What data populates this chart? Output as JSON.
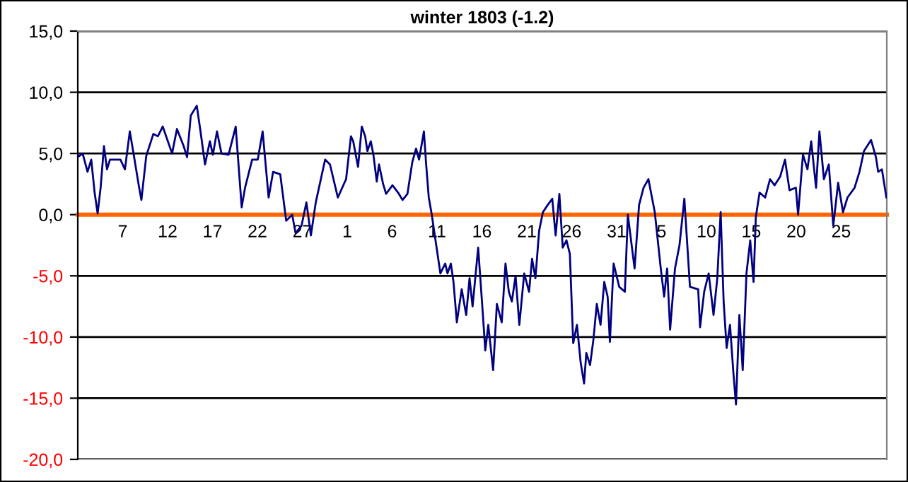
{
  "chart_data": {
    "type": "line",
    "title": "winter 1803 (-1.2)",
    "x": [
      "1802-12-02T00:00",
      "1802-12-02T13:00",
      "1802-12-03T02:00",
      "1802-12-03T12:00",
      "1802-12-03T21:00",
      "1802-12-04T05:00",
      "1802-12-04T13:00",
      "1802-12-04T22:00",
      "1802-12-05T06:00",
      "1802-12-05T14:00",
      "1802-12-06T18:00",
      "1802-12-07T06:00",
      "1802-12-07T19:00",
      "1802-12-08T05:00",
      "1802-12-08T20:00",
      "1802-12-09T02:00",
      "1802-12-09T15:00",
      "1802-12-10T10:00",
      "1802-12-10T22:00",
      "1802-12-11T11:00",
      "1802-12-12T12:00",
      "1802-12-13T01:00",
      "1802-12-13T19:00",
      "1802-12-14T04:00",
      "1802-12-14T14:00",
      "1802-12-15T06:00",
      "1802-12-15T16:00",
      "1802-12-16T04:00",
      "1802-12-16T17:00",
      "1802-12-17T01:00",
      "1802-12-17T12:00",
      "1802-12-18T00:00",
      "1802-12-18T19:00",
      "1802-12-19T14:00",
      "1802-12-20T06:00",
      "1802-12-20T15:00",
      "1802-12-21T10:00",
      "1802-12-22T01:00",
      "1802-12-22T14:00",
      "1802-12-23T06:00",
      "1802-12-23T18:00",
      "1802-12-24T13:00",
      "1802-12-25T05:00",
      "1802-12-25T21:00",
      "1802-12-26T06:00",
      "1802-12-26T22:00",
      "1802-12-27T11:00",
      "1802-12-27T23:00",
      "1802-12-28T12:00",
      "1802-12-29T13:00",
      "1802-12-30T02:00",
      "1802-12-30T23:00",
      "1802-12-31T21:00",
      "1803-01-01T10:00",
      "1803-01-01T16:00",
      "1803-01-02T05:00",
      "1803-01-02T15:00",
      "1803-01-03T00:00",
      "1803-01-03T06:00",
      "1803-01-03T15:00",
      "1803-01-03T22:00",
      "1803-01-04T07:00",
      "1803-01-04T13:00",
      "1803-01-05T00:00",
      "1803-01-05T08:00",
      "1803-01-06T01:00",
      "1803-01-06T16:00",
      "1803-01-07T04:00",
      "1803-01-07T17:00",
      "1803-01-08T06:00",
      "1803-01-08T16:00",
      "1803-01-09T00:00",
      "1803-01-09T13:00",
      "1803-01-09T19:00",
      "1803-01-10T02:00",
      "1803-01-10T10:00",
      "1803-01-10T20:00",
      "1803-01-11T09:00",
      "1803-01-11T22:00",
      "1803-01-12T04:00",
      "1803-01-12T13:00",
      "1803-01-12T20:00",
      "1803-01-13T05:00",
      "1803-01-13T18:00",
      "1803-01-14T06:00",
      "1803-01-14T15:00",
      "1803-01-14T23:00",
      "1803-01-15T14:00",
      "1803-01-16T02:00",
      "1803-01-16T09:00",
      "1803-01-16T17:00",
      "1803-01-17T06:00",
      "1803-01-17T16:00",
      "1803-01-18T05:00",
      "1803-01-18T15:00",
      "1803-01-19T00:00",
      "1803-01-19T08:00",
      "1803-01-19T18:00",
      "1803-01-20T04:00",
      "1803-01-20T17:00",
      "1803-01-21T06:00",
      "1803-01-21T14:00",
      "1803-01-21T23:00",
      "1803-01-22T09:00",
      "1803-01-22T19:00",
      "1803-01-23T08:00",
      "1803-01-23T20:00",
      "1803-01-24T05:00",
      "1803-01-24T15:00",
      "1803-01-25T00:00",
      "1803-01-25T10:00",
      "1803-01-25T19:00",
      "1803-01-26T04:00",
      "1803-01-26T14:00",
      "1803-01-27T00:00",
      "1803-01-27T09:00",
      "1803-01-27T15:00",
      "1803-01-28T01:00",
      "1803-01-28T10:00",
      "1803-01-28T19:00",
      "1803-01-29T05:00",
      "1803-01-29T15:00",
      "1803-01-30T00:00",
      "1803-01-30T06:00",
      "1803-01-30T16:00",
      "1803-01-31T07:00",
      "1803-01-31T22:00",
      "1803-02-01T06:00",
      "1803-02-02T00:00",
      "1803-02-02T12:00",
      "1803-02-03T00:00",
      "1803-02-03T13:00",
      "1803-02-04T06:00",
      "1803-02-04T22:00",
      "1803-02-05T07:00",
      "1803-02-05T15:00",
      "1803-02-05T23:00",
      "1803-02-06T12:00",
      "1803-02-07T00:00",
      "1803-02-07T13:00",
      "1803-02-08T04:00",
      "1803-02-09T02:00",
      "1803-02-09T07:00",
      "1803-02-09T18:00",
      "1803-02-10T06:00",
      "1803-02-10T19:00",
      "1803-02-11T05:00",
      "1803-02-11T14:00",
      "1803-02-11T22:00",
      "1803-02-12T06:00",
      "1803-02-12T15:00",
      "1803-02-13T00:00",
      "1803-02-13T07:00",
      "1803-02-13T16:00",
      "1803-02-14T01:00",
      "1803-02-14T11:00",
      "1803-02-14T21:00",
      "1803-02-15T06:00",
      "1803-02-15T12:00",
      "1803-02-15T22:00",
      "1803-02-16T13:00",
      "1803-02-17T02:00",
      "1803-02-17T14:00",
      "1803-02-18T05:00",
      "1803-02-18T18:00",
      "1803-02-19T06:00",
      "1803-02-19T23:00",
      "1803-02-20T05:00",
      "1803-02-20T18:00",
      "1803-02-21T06:00",
      "1803-02-21T16:00",
      "1803-02-22T05:00",
      "1803-02-22T14:00",
      "1803-02-23T02:00",
      "1803-02-23T15:00",
      "1803-02-24T03:00",
      "1803-02-24T16:00",
      "1803-02-25T05:00",
      "1803-02-25T17:00",
      "1803-02-26T12:00",
      "1803-02-27T01:00",
      "1803-02-27T13:00",
      "1803-02-28T08:00",
      "1803-02-28T21:00",
      "1803-03-01T03:00",
      "1803-03-01T13:00",
      "1803-03-02T01:00"
    ],
    "series": [
      {
        "color": "#000080",
        "values": [
          4.7,
          5.0,
          3.5,
          4.5,
          1.8,
          0.1,
          2.2,
          5.6,
          3.7,
          4.5,
          4.5,
          3.7,
          6.8,
          5.0,
          2.2,
          1.2,
          4.8,
          6.6,
          6.4,
          7.2,
          5.0,
          7.0,
          5.6,
          4.7,
          8.1,
          8.9,
          6.8,
          4.1,
          6.0,
          4.9,
          6.8,
          5.0,
          4.9,
          7.2,
          0.6,
          2.2,
          4.5,
          4.5,
          6.8,
          1.4,
          3.5,
          3.3,
          -0.5,
          0.0,
          -1.5,
          -0.9,
          1.0,
          -1.7,
          1.0,
          4.5,
          4.1,
          1.4,
          2.9,
          6.4,
          6.0,
          3.9,
          7.2,
          6.4,
          5.2,
          6.0,
          4.9,
          2.7,
          4.1,
          2.5,
          1.7,
          2.4,
          1.8,
          1.2,
          1.7,
          4.3,
          5.4,
          4.5,
          6.8,
          4.1,
          1.4,
          0.0,
          -2.1,
          -4.8,
          -4.0,
          -4.8,
          -4.0,
          -5.5,
          -8.8,
          -6.1,
          -8.2,
          -5.2,
          -7.5,
          -2.7,
          -7.9,
          -11.1,
          -9.0,
          -12.7,
          -7.3,
          -8.8,
          -4.0,
          -6.3,
          -7.1,
          -5.0,
          -9.0,
          -4.8,
          -6.3,
          -3.6,
          -5.2,
          -1.3,
          0.2,
          0.8,
          1.3,
          -1.7,
          1.7,
          -2.7,
          -2.1,
          -3.2,
          -10.5,
          -9.0,
          -12.1,
          -13.8,
          -11.3,
          -12.3,
          -10.2,
          -7.3,
          -9.0,
          -5.5,
          -6.7,
          -10.4,
          -4.0,
          -5.9,
          -6.3,
          0.0,
          -4.4,
          0.8,
          2.2,
          2.9,
          0.2,
          -4.4,
          -6.7,
          -4.4,
          -9.4,
          -4.4,
          -2.5,
          1.3,
          -5.9,
          -6.1,
          -9.2,
          -6.3,
          -4.8,
          -8.2,
          -5.2,
          0.2,
          -7.1,
          -10.9,
          -9.0,
          -12.9,
          -15.5,
          -8.2,
          -12.7,
          -4.8,
          -2.1,
          -5.5,
          -0.2,
          1.8,
          1.4,
          2.9,
          2.4,
          3.1,
          4.5,
          2.0,
          2.2,
          0.0,
          4.9,
          3.7,
          6.0,
          2.2,
          6.8,
          2.9,
          4.1,
          -0.9,
          2.6,
          0.2,
          1.4,
          2.2,
          3.5,
          5.2,
          6.1,
          4.7,
          3.5,
          3.7,
          1.4
        ]
      }
    ],
    "xlim": [
      "1802-12-02T00:00",
      "1803-03-02T02:00"
    ],
    "xticks": [
      {
        "value": "1802-12-07",
        "label": "7"
      },
      {
        "value": "1802-12-12",
        "label": "12"
      },
      {
        "value": "1802-12-17",
        "label": "17"
      },
      {
        "value": "1802-12-22",
        "label": "22"
      },
      {
        "value": "1802-12-27",
        "label": "27"
      },
      {
        "value": "1803-01-01",
        "label": "1"
      },
      {
        "value": "1803-01-06",
        "label": "6"
      },
      {
        "value": "1803-01-11",
        "label": "11"
      },
      {
        "value": "1803-01-16",
        "label": "16"
      },
      {
        "value": "1803-01-21",
        "label": "21"
      },
      {
        "value": "1803-01-26",
        "label": "26"
      },
      {
        "value": "1803-01-31",
        "label": "31"
      },
      {
        "value": "1803-02-05",
        "label": "5"
      },
      {
        "value": "1803-02-10",
        "label": "10"
      },
      {
        "value": "1803-02-15",
        "label": "15"
      },
      {
        "value": "1803-02-20",
        "label": "20"
      },
      {
        "value": "1803-02-25",
        "label": "25"
      }
    ],
    "ylim": [
      -20,
      15
    ],
    "yticks": [
      {
        "value": -20,
        "label": "-20,0"
      },
      {
        "value": -15,
        "label": "-15,0"
      },
      {
        "value": -10,
        "label": "-10,0"
      },
      {
        "value": -5,
        "label": "-5,0"
      },
      {
        "value": 0,
        "label": "0,0"
      },
      {
        "value": 5,
        "label": "5,0"
      },
      {
        "value": 10,
        "label": "10,0"
      },
      {
        "value": 15,
        "label": "15,0"
      }
    ],
    "grid": "y",
    "marker": "none",
    "line_style": "solid"
  }
}
